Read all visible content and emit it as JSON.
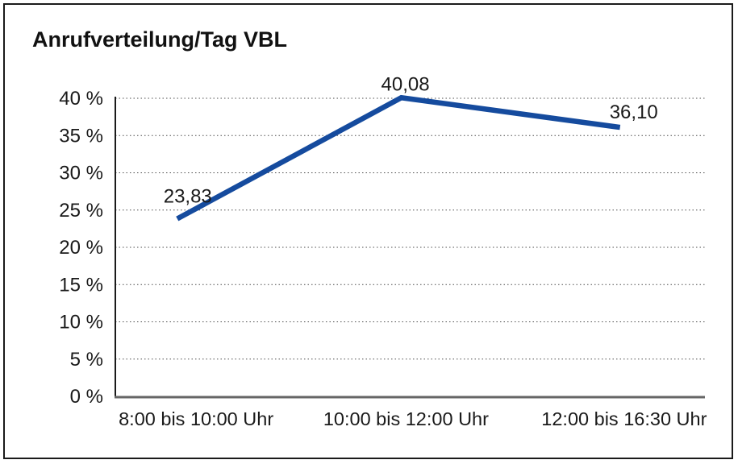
{
  "window": {
    "title": "Anrufverteilung/Tag VBL"
  },
  "chart_data": {
    "type": "line",
    "title": "Anrufverteilung/Tag VBL",
    "categories": [
      "8:00 bis 10:00 Uhr",
      "10:00 bis 12:00 Uhr",
      "12:00 bis 16:30 Uhr"
    ],
    "values": [
      23.83,
      40.08,
      36.1
    ],
    "value_labels": [
      "23,83",
      "40,08",
      "36,10"
    ],
    "series_name": "Anrufverteilung/Tag VBL",
    "xlabel": "",
    "ylabel": "",
    "ylim": [
      0,
      40
    ],
    "ytick_step": 5,
    "ytick_labels": [
      "0 %",
      "5 %",
      "10 %",
      "15 %",
      "20 %",
      "25 %",
      "30 %",
      "35 %",
      "40 %"
    ],
    "grid": "horizontal-dotted",
    "legend": "none",
    "colors": {
      "line": "#154b9e",
      "grid": "#4d4d4d",
      "y_axis": "#1a1a1a",
      "x_axis": "#666666",
      "text": "#1a1a1a",
      "frame": "#1a1a1a",
      "background": "#ffffff"
    }
  }
}
